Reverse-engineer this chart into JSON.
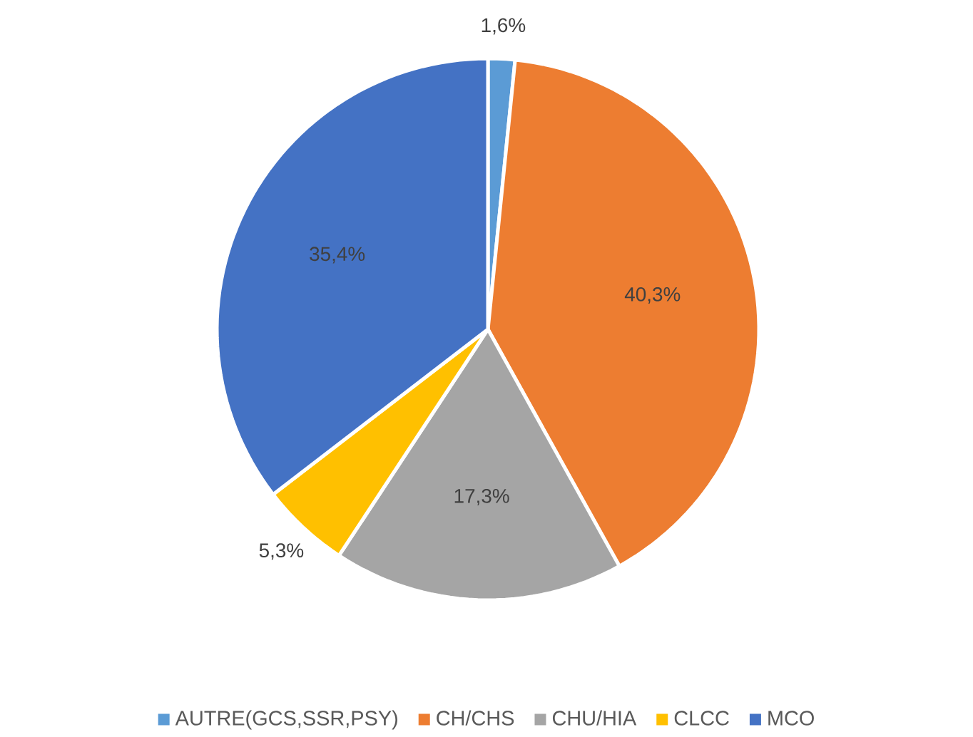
{
  "chart_data": {
    "type": "pie",
    "categories": [
      "AUTRE(GCS,SSR,PSY)",
      "CH/CHS",
      "CHU/HIA",
      "CLCC",
      "MCO"
    ],
    "values": [
      1.6,
      40.3,
      17.3,
      5.3,
      35.4
    ],
    "colors": [
      "#5b9bd5",
      "#ed7d31",
      "#a5a5a5",
      "#ffc000",
      "#4472c4"
    ],
    "value_labels": [
      "1,6%",
      "40,3%",
      "17,3%",
      "5,3%",
      "35,4%"
    ],
    "legend": "bottom"
  }
}
